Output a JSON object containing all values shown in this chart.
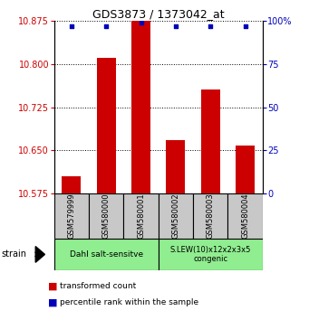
{
  "title": "GDS3873 / 1373042_at",
  "samples": [
    "GSM579999",
    "GSM580000",
    "GSM580001",
    "GSM580002",
    "GSM580003",
    "GSM580004"
  ],
  "bar_values": [
    10.605,
    10.81,
    10.875,
    10.668,
    10.755,
    10.658
  ],
  "bar_base": 10.575,
  "percentile_values": [
    97,
    97,
    99,
    97,
    97,
    97
  ],
  "ylim_left": [
    10.575,
    10.875
  ],
  "ylim_right": [
    0,
    100
  ],
  "yticks_left": [
    10.575,
    10.65,
    10.725,
    10.8,
    10.875
  ],
  "yticks_right": [
    0,
    25,
    50,
    75,
    100
  ],
  "bar_color": "#cc0000",
  "dot_color": "#0000bb",
  "group1_label": "Dahl salt-sensitve",
  "group2_label": "S.LEW(10)x12x2x3x5\ncongenic",
  "group1_indices": [
    0,
    1,
    2
  ],
  "group2_indices": [
    3,
    4,
    5
  ],
  "group_color": "#90ee90",
  "sample_bg_color": "#c8c8c8",
  "legend_bar": "transformed count",
  "legend_dot": "percentile rank within the sample",
  "left_color": "#cc0000",
  "right_color": "#0000bb"
}
